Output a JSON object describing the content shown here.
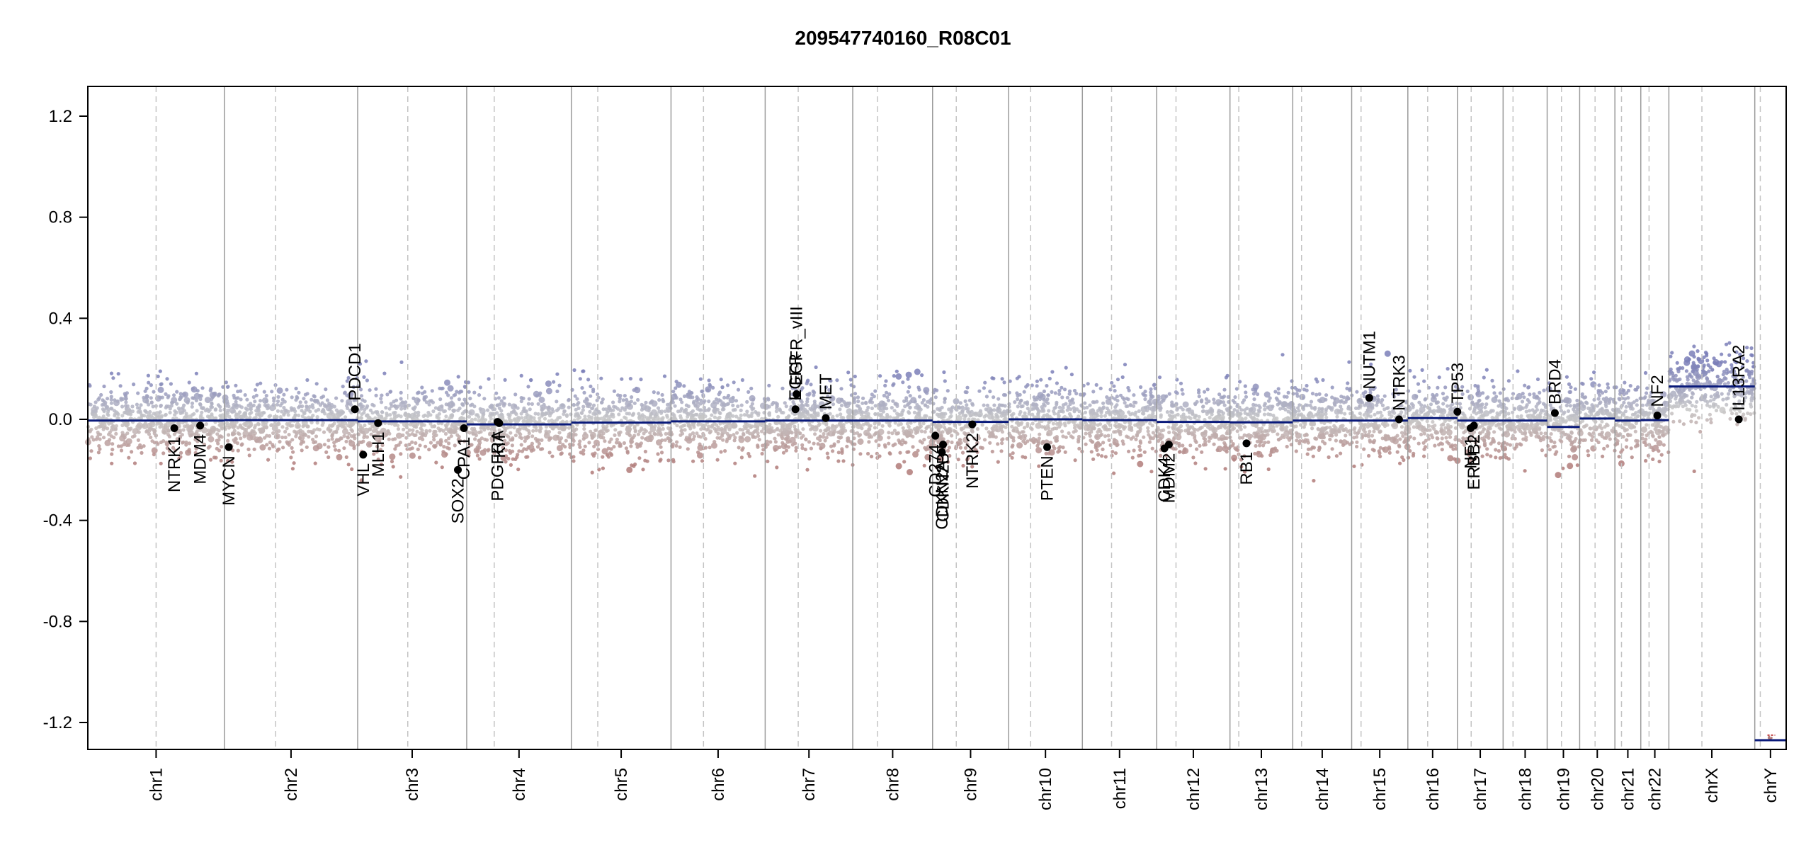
{
  "chart_data": {
    "type": "scatter",
    "title": "209547740160_R08C01",
    "xlabel": "",
    "ylabel": "",
    "ylim": [
      -1.35,
      1.35
    ],
    "yticks": [
      "1.2",
      "0.8",
      "0.4",
      "0.0",
      "-0.4",
      "-0.8",
      "-1.2"
    ],
    "ytick_values": [
      1.2,
      0.8,
      0.4,
      0.0,
      -0.4,
      -0.8,
      -1.2
    ],
    "colors": {
      "gain": "#7b7fb8",
      "neutral": "#c8c8c8",
      "loss": "#b07a78",
      "segment": "#0a1a7a",
      "gene_point": "#000000",
      "boundary": "#9a9a9a",
      "centromere": "#c4c4c4"
    },
    "chromosomes": [
      {
        "name": "chr1",
        "start": 0,
        "end": 248,
        "centromere": 124
      },
      {
        "name": "chr2",
        "start": 248,
        "end": 490,
        "centromere": 341
      },
      {
        "name": "chr3",
        "start": 490,
        "end": 688,
        "centromere": 581
      },
      {
        "name": "chr4",
        "start": 688,
        "end": 878,
        "centromere": 738
      },
      {
        "name": "chr5",
        "start": 878,
        "end": 1059,
        "centromere": 926
      },
      {
        "name": "chr6",
        "start": 1059,
        "end": 1230,
        "centromere": 1118
      },
      {
        "name": "chr7",
        "start": 1230,
        "end": 1389,
        "centromere": 1290
      },
      {
        "name": "chr8",
        "start": 1389,
        "end": 1534,
        "centromere": 1434
      },
      {
        "name": "chr9",
        "start": 1534,
        "end": 1672,
        "centromere": 1577
      },
      {
        "name": "chr10",
        "start": 1672,
        "end": 1806,
        "centromere": 1712
      },
      {
        "name": "chr11",
        "start": 1806,
        "end": 1941,
        "centromere": 1859
      },
      {
        "name": "chr12",
        "start": 1941,
        "end": 2074,
        "centromere": 1976
      },
      {
        "name": "chr13",
        "start": 2074,
        "end": 2188,
        "centromere": 2090
      },
      {
        "name": "chr14",
        "start": 2188,
        "end": 2295,
        "centromere": 2204
      },
      {
        "name": "chr15",
        "start": 2295,
        "end": 2397,
        "centromere": 2312
      },
      {
        "name": "chr16",
        "start": 2397,
        "end": 2487,
        "centromere": 2433
      },
      {
        "name": "chr17",
        "start": 2487,
        "end": 2570,
        "centromere": 2512
      },
      {
        "name": "chr18",
        "start": 2570,
        "end": 2650,
        "centromere": 2588
      },
      {
        "name": "chr19",
        "start": 2650,
        "end": 2709,
        "centromere": 2676
      },
      {
        "name": "chr20",
        "start": 2709,
        "end": 2773,
        "centromere": 2737
      },
      {
        "name": "chr21",
        "start": 2773,
        "end": 2820,
        "centromere": 2785
      },
      {
        "name": "chr22",
        "start": 2820,
        "end": 2871,
        "centromere": 2835
      },
      {
        "name": "chrX",
        "start": 2871,
        "end": 3027,
        "centromere": 2931
      },
      {
        "name": "chrY",
        "start": 3027,
        "end": 3084,
        "centromere": 3037
      }
    ],
    "segments": [
      {
        "chr": "chr1",
        "x0": 0,
        "x1": 248,
        "y": -0.005
      },
      {
        "chr": "chr2",
        "x0": 248,
        "x1": 490,
        "y": -0.003
      },
      {
        "chr": "chr3",
        "x0": 490,
        "x1": 688,
        "y": -0.008
      },
      {
        "chr": "chr4",
        "x0": 688,
        "x1": 878,
        "y": -0.02
      },
      {
        "chr": "chr5",
        "x0": 878,
        "x1": 1059,
        "y": -0.013
      },
      {
        "chr": "chr6",
        "x0": 1059,
        "x1": 1230,
        "y": -0.008
      },
      {
        "chr": "chr7",
        "x0": 1230,
        "x1": 1389,
        "y": -0.005
      },
      {
        "chr": "chr8",
        "x0": 1389,
        "x1": 1534,
        "y": -0.005
      },
      {
        "chr": "chr9",
        "x0": 1534,
        "x1": 1672,
        "y": -0.01
      },
      {
        "chr": "chr10",
        "x0": 1672,
        "x1": 1806,
        "y": 0.0
      },
      {
        "chr": "chr11",
        "x0": 1806,
        "x1": 1941,
        "y": -0.003
      },
      {
        "chr": "chr12",
        "x0": 1941,
        "x1": 2074,
        "y": -0.01
      },
      {
        "chr": "chr13",
        "x0": 2074,
        "x1": 2188,
        "y": -0.012
      },
      {
        "chr": "chr14",
        "x0": 2188,
        "x1": 2295,
        "y": -0.005
      },
      {
        "chr": "chr15",
        "x0": 2295,
        "x1": 2397,
        "y": -0.005
      },
      {
        "chr": "chr16",
        "x0": 2397,
        "x1": 2487,
        "y": 0.005
      },
      {
        "chr": "chr17",
        "x0": 2487,
        "x1": 2570,
        "y": -0.005
      },
      {
        "chr": "chr18",
        "x0": 2570,
        "x1": 2650,
        "y": -0.005
      },
      {
        "chr": "chr19",
        "x0": 2650,
        "x1": 2709,
        "y": -0.03
      },
      {
        "chr": "chr20",
        "x0": 2709,
        "x1": 2773,
        "y": 0.003
      },
      {
        "chr": "chr21",
        "x0": 2773,
        "x1": 2820,
        "y": -0.005
      },
      {
        "chr": "chr22",
        "x0": 2820,
        "x1": 2871,
        "y": -0.003
      },
      {
        "chr": "chrX",
        "x0": 2871,
        "x1": 3027,
        "y": 0.13
      },
      {
        "chr": "chrY",
        "x0": 3027,
        "x1": 3084,
        "y": -1.27
      }
    ],
    "genes": [
      {
        "name": "NTRK1",
        "x": 157,
        "y": -0.035,
        "label": "below"
      },
      {
        "name": "MDM4",
        "x": 204,
        "y": -0.025,
        "label": "below"
      },
      {
        "name": "MYCN",
        "x": 256,
        "y": -0.11,
        "label": "below"
      },
      {
        "name": "PDCD1",
        "x": 485,
        "y": 0.04,
        "label": "above"
      },
      {
        "name": "VHL",
        "x": 500,
        "y": -0.14,
        "label": "below"
      },
      {
        "name": "MLH1",
        "x": 527,
        "y": -0.015,
        "label": "below"
      },
      {
        "name": "SOX2",
        "x": 672,
        "y": -0.2,
        "label": "below"
      },
      {
        "name": "CPA1",
        "x": 683,
        "y": -0.035,
        "label": "below"
      },
      {
        "name": "PDGFRA",
        "x": 744,
        "y": -0.01,
        "label": "below"
      },
      {
        "name": "KIT",
        "x": 747,
        "y": -0.015,
        "label": "below"
      },
      {
        "name": "EGFR_vIII",
        "x": 1287,
        "y": 0.1,
        "label": "above"
      },
      {
        "name": "EGFR",
        "x": 1285,
        "y": 0.04,
        "label": "above"
      },
      {
        "name": "MET",
        "x": 1340,
        "y": 0.005,
        "label": "above"
      },
      {
        "name": "CD274",
        "x": 1539,
        "y": -0.065,
        "label": "below"
      },
      {
        "name": "CDKN2A",
        "x": 1551,
        "y": -0.13,
        "label": "below"
      },
      {
        "name": "CDKN2B",
        "x": 1553,
        "y": -0.1,
        "label": "below"
      },
      {
        "name": "NTRK2",
        "x": 1606,
        "y": -0.02,
        "label": "below"
      },
      {
        "name": "PTEN",
        "x": 1742,
        "y": -0.11,
        "label": "below"
      },
      {
        "name": "CDK4",
        "x": 1955,
        "y": -0.115,
        "label": "below"
      },
      {
        "name": "MDM2",
        "x": 1963,
        "y": -0.1,
        "label": "below"
      },
      {
        "name": "RB1",
        "x": 2104,
        "y": -0.095,
        "label": "below"
      },
      {
        "name": "NUTM1",
        "x": 2327,
        "y": 0.085,
        "label": "above"
      },
      {
        "name": "NTRK3",
        "x": 2381,
        "y": 0.0,
        "label": "above"
      },
      {
        "name": "TP53",
        "x": 2487,
        "y": 0.03,
        "label": "above"
      },
      {
        "name": "NF1",
        "x": 2511,
        "y": -0.035,
        "label": "below"
      },
      {
        "name": "ERBB2",
        "x": 2517,
        "y": -0.025,
        "label": "below"
      },
      {
        "name": "BRD4",
        "x": 2664,
        "y": 0.025,
        "label": "above"
      },
      {
        "name": "NF2",
        "x": 2850,
        "y": 0.015,
        "label": "above"
      },
      {
        "name": "IL13RA2",
        "x": 2998,
        "y": 0.0,
        "label": "above"
      }
    ]
  }
}
